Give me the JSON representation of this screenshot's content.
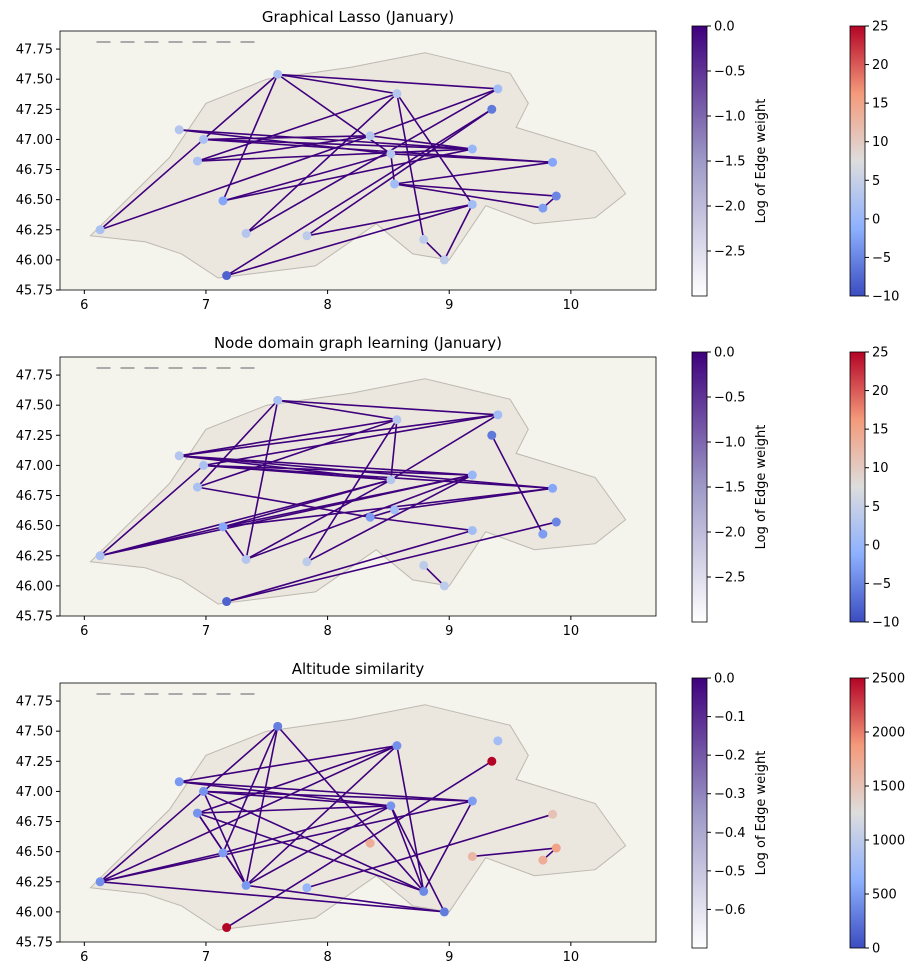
{
  "chart_data": [
    {
      "type": "network-map",
      "title": "Graphical Lasso (January)",
      "xlim": [
        5.8,
        10.7
      ],
      "ylim": [
        45.75,
        47.9
      ],
      "x_ticks": [
        "6",
        "7",
        "8",
        "9",
        "10"
      ],
      "y_ticks": [
        "45.75",
        "46.00",
        "46.25",
        "46.50",
        "46.75",
        "47.00",
        "47.25",
        "47.50",
        "47.75"
      ],
      "edge_colorbar": {
        "label": "Log of Edge weight",
        "range": [
          -3.0,
          0.0
        ],
        "ticks": [
          "0.0",
          "−0.5",
          "−1.0",
          "−1.5",
          "−2.0",
          "−2.5"
        ]
      },
      "node_colorbar": {
        "range": [
          -10,
          25
        ],
        "ticks": [
          "25",
          "20",
          "15",
          "10",
          "5",
          "0",
          "−5",
          "−10"
        ]
      },
      "nodes": [
        {
          "lon": 6.13,
          "lat": 46.25,
          "value": 2
        },
        {
          "lon": 6.78,
          "lat": 47.08,
          "value": 3
        },
        {
          "lon": 6.93,
          "lat": 46.82,
          "value": 2
        },
        {
          "lon": 6.98,
          "lat": 47.0,
          "value": 2
        },
        {
          "lon": 7.14,
          "lat": 46.49,
          "value": -2
        },
        {
          "lon": 7.17,
          "lat": 45.87,
          "value": -8
        },
        {
          "lon": 7.33,
          "lat": 46.22,
          "value": 3
        },
        {
          "lon": 7.59,
          "lat": 47.54,
          "value": 2
        },
        {
          "lon": 7.83,
          "lat": 46.2,
          "value": 4
        },
        {
          "lon": 8.35,
          "lat": 47.03,
          "value": 3
        },
        {
          "lon": 8.52,
          "lat": 46.88,
          "value": 3
        },
        {
          "lon": 8.55,
          "lat": 46.63,
          "value": 1
        },
        {
          "lon": 8.57,
          "lat": 47.38,
          "value": 3
        },
        {
          "lon": 8.79,
          "lat": 46.17,
          "value": 4
        },
        {
          "lon": 8.96,
          "lat": 46.0,
          "value": 4
        },
        {
          "lon": 9.19,
          "lat": 46.92,
          "value": 0
        },
        {
          "lon": 9.19,
          "lat": 46.46,
          "value": 1
        },
        {
          "lon": 9.35,
          "lat": 47.25,
          "value": -6
        },
        {
          "lon": 9.4,
          "lat": 47.42,
          "value": 1
        },
        {
          "lon": 9.77,
          "lat": 46.43,
          "value": -3
        },
        {
          "lon": 9.85,
          "lat": 46.81,
          "value": -2
        },
        {
          "lon": 9.88,
          "lat": 46.53,
          "value": -5
        }
      ],
      "edges": [
        [
          0,
          3
        ],
        [
          0,
          9
        ],
        [
          1,
          10
        ],
        [
          1,
          15
        ],
        [
          2,
          9
        ],
        [
          2,
          12
        ],
        [
          3,
          15
        ],
        [
          3,
          20
        ],
        [
          3,
          9
        ],
        [
          4,
          7
        ],
        [
          4,
          10
        ],
        [
          4,
          15
        ],
        [
          5,
          17
        ],
        [
          5,
          16
        ],
        [
          6,
          18
        ],
        [
          6,
          12
        ],
        [
          7,
          12
        ],
        [
          7,
          18
        ],
        [
          7,
          10
        ],
        [
          7,
          3
        ],
        [
          8,
          17
        ],
        [
          8,
          16
        ],
        [
          9,
          18
        ],
        [
          10,
          20
        ],
        [
          10,
          11
        ],
        [
          11,
          19
        ],
        [
          11,
          20
        ],
        [
          11,
          21
        ],
        [
          12,
          13
        ],
        [
          13,
          14
        ],
        [
          14,
          16
        ],
        [
          15,
          9
        ],
        [
          2,
          15
        ],
        [
          12,
          16
        ],
        [
          19,
          21
        ]
      ]
    },
    {
      "type": "network-map",
      "title": "Node domain graph learning (January)",
      "xlim": [
        5.8,
        10.7
      ],
      "ylim": [
        45.75,
        47.9
      ],
      "x_ticks": [
        "6",
        "7",
        "8",
        "9",
        "10"
      ],
      "y_ticks": [
        "45.75",
        "46.00",
        "46.25",
        "46.50",
        "46.75",
        "47.00",
        "47.25",
        "47.50",
        "47.75"
      ],
      "edge_colorbar": {
        "label": "Log of Edge weight",
        "range": [
          -3.0,
          0.0
        ],
        "ticks": [
          "0.0",
          "−0.5",
          "−1.0",
          "−1.5",
          "−2.0",
          "−2.5"
        ]
      },
      "node_colorbar": {
        "range": [
          -10,
          25
        ],
        "ticks": [
          "25",
          "20",
          "15",
          "10",
          "5",
          "0",
          "−5",
          "−10"
        ]
      },
      "nodes": [
        {
          "lon": 6.13,
          "lat": 46.25,
          "value": 2
        },
        {
          "lon": 6.78,
          "lat": 47.08,
          "value": 3
        },
        {
          "lon": 6.93,
          "lat": 46.82,
          "value": 2
        },
        {
          "lon": 6.98,
          "lat": 47.0,
          "value": 2
        },
        {
          "lon": 7.14,
          "lat": 46.49,
          "value": -2
        },
        {
          "lon": 7.17,
          "lat": 45.87,
          "value": -8
        },
        {
          "lon": 7.33,
          "lat": 46.22,
          "value": 3
        },
        {
          "lon": 7.59,
          "lat": 47.54,
          "value": 2
        },
        {
          "lon": 7.83,
          "lat": 46.2,
          "value": 4
        },
        {
          "lon": 8.35,
          "lat": 46.57,
          "value": -3
        },
        {
          "lon": 8.52,
          "lat": 46.88,
          "value": 3
        },
        {
          "lon": 8.55,
          "lat": 46.63,
          "value": 1
        },
        {
          "lon": 8.57,
          "lat": 47.38,
          "value": 3
        },
        {
          "lon": 8.79,
          "lat": 46.17,
          "value": 4
        },
        {
          "lon": 8.96,
          "lat": 46.0,
          "value": 4
        },
        {
          "lon": 9.19,
          "lat": 46.92,
          "value": 0
        },
        {
          "lon": 9.19,
          "lat": 46.46,
          "value": 1
        },
        {
          "lon": 9.35,
          "lat": 47.25,
          "value": -6
        },
        {
          "lon": 9.4,
          "lat": 47.42,
          "value": 1
        },
        {
          "lon": 9.77,
          "lat": 46.43,
          "value": -3
        },
        {
          "lon": 9.85,
          "lat": 46.81,
          "value": -2
        },
        {
          "lon": 9.88,
          "lat": 46.53,
          "value": -5
        }
      ],
      "edges": [
        [
          0,
          3
        ],
        [
          0,
          15
        ],
        [
          0,
          10
        ],
        [
          0,
          4
        ],
        [
          1,
          12
        ],
        [
          1,
          18
        ],
        [
          1,
          15
        ],
        [
          1,
          10
        ],
        [
          1,
          20
        ],
        [
          2,
          12
        ],
        [
          2,
          9
        ],
        [
          3,
          18
        ],
        [
          3,
          15
        ],
        [
          3,
          10
        ],
        [
          4,
          6
        ],
        [
          4,
          10
        ],
        [
          4,
          20
        ],
        [
          4,
          15
        ],
        [
          5,
          16
        ],
        [
          5,
          21
        ],
        [
          6,
          7
        ],
        [
          6,
          15
        ],
        [
          6,
          10
        ],
        [
          7,
          12
        ],
        [
          7,
          18
        ],
        [
          8,
          15
        ],
        [
          8,
          12
        ],
        [
          9,
          11
        ],
        [
          9,
          16
        ],
        [
          10,
          18
        ],
        [
          11,
          20
        ],
        [
          12,
          10
        ],
        [
          13,
          14
        ],
        [
          17,
          19
        ],
        [
          7,
          2
        ],
        [
          3,
          20
        ]
      ]
    },
    {
      "type": "network-map",
      "title": "Altitude similarity",
      "xlim": [
        5.8,
        10.7
      ],
      "ylim": [
        45.75,
        47.9
      ],
      "x_ticks": [
        "6",
        "7",
        "8",
        "9",
        "10"
      ],
      "y_ticks": [
        "45.75",
        "46.00",
        "46.25",
        "46.50",
        "46.75",
        "47.00",
        "47.25",
        "47.50",
        "47.75"
      ],
      "edge_colorbar": {
        "label": "Log of Edge weight",
        "range": [
          -0.7,
          0.0
        ],
        "ticks": [
          "0.0",
          "−0.1",
          "−0.2",
          "−0.3",
          "−0.4",
          "−0.5",
          "−0.6"
        ]
      },
      "node_colorbar": {
        "range": [
          0,
          2500
        ],
        "ticks": [
          "2500",
          "2000",
          "1500",
          "1000",
          "500",
          "0"
        ]
      },
      "nodes": [
        {
          "lon": 6.13,
          "lat": 46.25,
          "value": 420
        },
        {
          "lon": 6.78,
          "lat": 47.08,
          "value": 480
        },
        {
          "lon": 6.93,
          "lat": 46.82,
          "value": 450
        },
        {
          "lon": 6.98,
          "lat": 47.0,
          "value": 440
        },
        {
          "lon": 7.14,
          "lat": 46.49,
          "value": 500
        },
        {
          "lon": 7.17,
          "lat": 45.87,
          "value": 2500
        },
        {
          "lon": 7.33,
          "lat": 46.22,
          "value": 480
        },
        {
          "lon": 7.59,
          "lat": 47.54,
          "value": 320
        },
        {
          "lon": 7.83,
          "lat": 46.2,
          "value": 700
        },
        {
          "lon": 8.35,
          "lat": 46.57,
          "value": 1700
        },
        {
          "lon": 8.52,
          "lat": 46.88,
          "value": 450
        },
        {
          "lon": 8.57,
          "lat": 47.38,
          "value": 430
        },
        {
          "lon": 8.79,
          "lat": 46.17,
          "value": 380
        },
        {
          "lon": 8.96,
          "lat": 46.0,
          "value": 300
        },
        {
          "lon": 9.19,
          "lat": 46.92,
          "value": 500
        },
        {
          "lon": 9.19,
          "lat": 46.46,
          "value": 1600
        },
        {
          "lon": 9.35,
          "lat": 47.25,
          "value": 2500
        },
        {
          "lon": 9.4,
          "lat": 47.42,
          "value": 800
        },
        {
          "lon": 9.77,
          "lat": 46.43,
          "value": 1700
        },
        {
          "lon": 9.85,
          "lat": 46.81,
          "value": 1500
        },
        {
          "lon": 9.88,
          "lat": 46.53,
          "value": 1800
        }
      ],
      "edges": [
        [
          0,
          3
        ],
        [
          0,
          11
        ],
        [
          0,
          14
        ],
        [
          0,
          13
        ],
        [
          0,
          4
        ],
        [
          1,
          10
        ],
        [
          1,
          14
        ],
        [
          1,
          11
        ],
        [
          2,
          11
        ],
        [
          2,
          10
        ],
        [
          2,
          12
        ],
        [
          3,
          10
        ],
        [
          3,
          12
        ],
        [
          3,
          6
        ],
        [
          4,
          10
        ],
        [
          4,
          7
        ],
        [
          6,
          7
        ],
        [
          6,
          11
        ],
        [
          6,
          10
        ],
        [
          6,
          2
        ],
        [
          7,
          3
        ],
        [
          7,
          12
        ],
        [
          10,
          13
        ],
        [
          10,
          12
        ],
        [
          11,
          12
        ],
        [
          13,
          6
        ],
        [
          14,
          12
        ],
        [
          5,
          16
        ],
        [
          8,
          19
        ],
        [
          15,
          20
        ],
        [
          18,
          20
        ],
        [
          3,
          14
        ],
        [
          2,
          6
        ]
      ]
    }
  ]
}
